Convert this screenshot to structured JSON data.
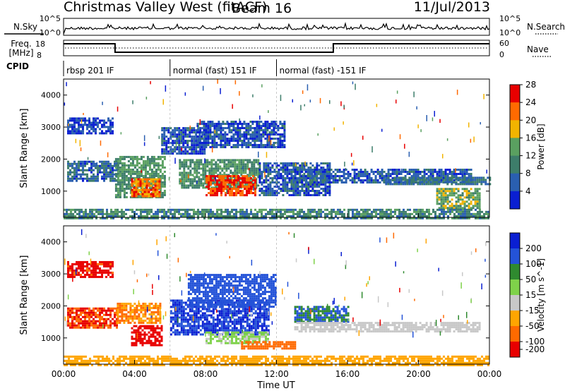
{
  "header": {
    "title": "Christmas Valley West (fitACF)",
    "beam": "Beam 16",
    "date": "11/Jul/2013"
  },
  "top_panels": {
    "nsky_label": "N.Sky",
    "nsky_ticks": [
      "10^5",
      "10^0"
    ],
    "nsearch_label": "N.Search",
    "nsearch_ticks": [
      "10^5",
      "10^0"
    ],
    "freq_label": "Freq.",
    "freq_unit": "[MHz]",
    "freq_ticks": [
      "18",
      "8"
    ],
    "freq_right_ticks": [
      "60",
      "0"
    ],
    "nave_label": "Nave",
    "cpid_label": "CPID",
    "cpid_segments": [
      {
        "label": "rbsp 201 IF",
        "start_hour": 0
      },
      {
        "label": "normal (fast) 151 IF",
        "start_hour": 6
      },
      {
        "label": "normal (fast) -151 IF",
        "start_hour": 12
      }
    ],
    "freq_steps": [
      {
        "start_hour": 0,
        "end_hour": 2.9,
        "level": "high"
      },
      {
        "start_hour": 2.9,
        "end_hour": 15.2,
        "level": "low"
      },
      {
        "start_hour": 15.2,
        "end_hour": 24,
        "level": "high"
      }
    ]
  },
  "chart_data": [
    {
      "type": "heatmap",
      "title": "",
      "xlabel": "Time UT",
      "ylabel": "Slant Range [km]",
      "xlim": [
        0,
        24
      ],
      "ylim": [
        180,
        4500
      ],
      "xticks": [
        "00:00",
        "04:00",
        "08:00",
        "12:00",
        "16:00",
        "20:00",
        "00:00"
      ],
      "yticks": [
        1000,
        2000,
        3000,
        4000
      ],
      "colorbar": {
        "label": "Power [dB]",
        "ticks": [
          4,
          8,
          12,
          16,
          20,
          24,
          28
        ],
        "colors": [
          "#0a1fd2",
          "#2a5fb0",
          "#3d7d6a",
          "#5aa060",
          "#f2b400",
          "#ff6a00",
          "#e80000"
        ]
      },
      "regions": [
        {
          "t": [
            0.2,
            3.0
          ],
          "r": [
            1300,
            1950
          ],
          "value": 7
        },
        {
          "t": [
            0.2,
            2.8
          ],
          "r": [
            2800,
            3300
          ],
          "value": 4
        },
        {
          "t": [
            2.9,
            5.7
          ],
          "r": [
            800,
            2100
          ],
          "value": 12
        },
        {
          "t": [
            3.8,
            5.4
          ],
          "r": [
            850,
            1400
          ],
          "value": 22
        },
        {
          "t": [
            5.5,
            8.0
          ],
          "r": [
            2200,
            3000
          ],
          "value": 5
        },
        {
          "t": [
            6.5,
            11.0
          ],
          "r": [
            1100,
            2000
          ],
          "value": 12
        },
        {
          "t": [
            8.0,
            10.8
          ],
          "r": [
            900,
            1500
          ],
          "value": 24
        },
        {
          "t": [
            7.5,
            12.5
          ],
          "r": [
            2400,
            3200
          ],
          "value": 5
        },
        {
          "t": [
            11.0,
            15.0
          ],
          "r": [
            900,
            1900
          ],
          "value": 6
        },
        {
          "t": [
            13.0,
            23.0
          ],
          "r": [
            1300,
            1700
          ],
          "value": 6
        },
        {
          "t": [
            18.0,
            24.0
          ],
          "r": [
            1250,
            1450
          ],
          "value": 8
        },
        {
          "t": [
            21.0,
            23.5
          ],
          "r": [
            500,
            1100
          ],
          "value": 14
        },
        {
          "t": [
            0.0,
            24.0
          ],
          "r": [
            180,
            450
          ],
          "value": 10
        }
      ]
    },
    {
      "type": "heatmap",
      "title": "",
      "xlabel": "Time UT",
      "ylabel": "Slant Range [km]",
      "xlim": [
        0,
        24
      ],
      "ylim": [
        180,
        4500
      ],
      "xticks": [
        "00:00",
        "04:00",
        "08:00",
        "12:00",
        "16:00",
        "20:00",
        "00:00"
      ],
      "yticks": [
        1000,
        2000,
        3000,
        4000
      ],
      "colorbar": {
        "label": "Velocity [m s^-1]",
        "ticks": [
          200,
          100,
          50,
          15,
          -15,
          -50,
          -100,
          -200
        ],
        "colors": [
          "#0a1fd2",
          "#2453d8",
          "#2f8a2f",
          "#7fd24a",
          "#c8c8c8",
          "#ffa500",
          "#ff6a00",
          "#e80000"
        ]
      },
      "regions": [
        {
          "t": [
            0.2,
            3.0
          ],
          "r": [
            1300,
            1950
          ],
          "value": -100
        },
        {
          "t": [
            0.2,
            2.8
          ],
          "r": [
            2900,
            3400
          ],
          "value": -120
        },
        {
          "t": [
            3.0,
            5.5
          ],
          "r": [
            1500,
            2100
          ],
          "value": -50
        },
        {
          "t": [
            3.8,
            5.5
          ],
          "r": [
            800,
            1400
          ],
          "value": -200
        },
        {
          "t": [
            6.0,
            11.5
          ],
          "r": [
            1100,
            2200
          ],
          "value": 200
        },
        {
          "t": [
            7.0,
            12.0
          ],
          "r": [
            2000,
            3000
          ],
          "value": 150
        },
        {
          "t": [
            8.0,
            11.5
          ],
          "r": [
            850,
            1200
          ],
          "value": 20
        },
        {
          "t": [
            10.0,
            13.0
          ],
          "r": [
            700,
            900
          ],
          "value": -80
        },
        {
          "t": [
            13.0,
            16.0
          ],
          "r": [
            1500,
            2000
          ],
          "value": 100
        },
        {
          "t": [
            13.0,
            23.5
          ],
          "r": [
            1200,
            1500
          ],
          "value": 0
        },
        {
          "t": [
            0.0,
            24.0
          ],
          "r": [
            180,
            450
          ],
          "value": -30
        }
      ]
    }
  ]
}
